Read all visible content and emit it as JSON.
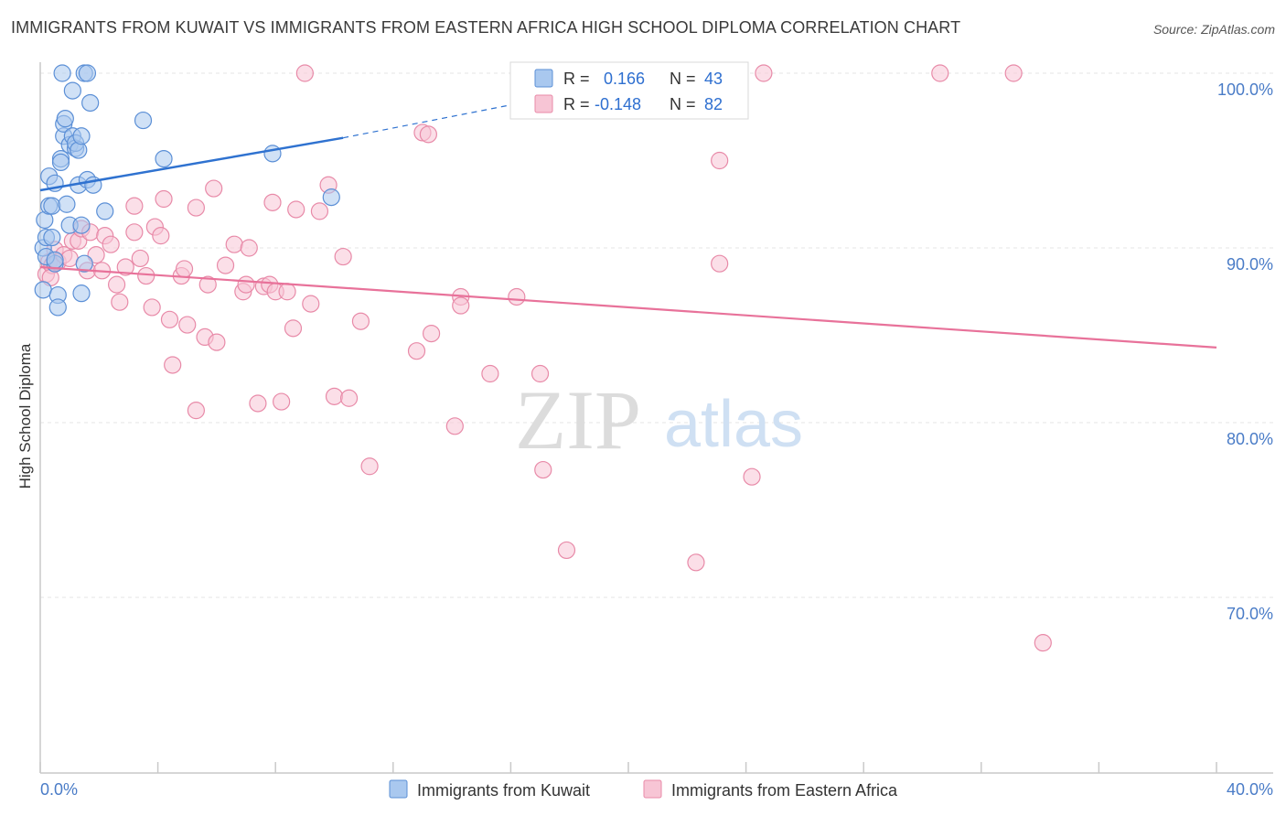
{
  "title": "IMMIGRANTS FROM KUWAIT VS IMMIGRANTS FROM EASTERN AFRICA HIGH SCHOOL DIPLOMA CORRELATION CHART",
  "source": "Source: ZipAtlas.com",
  "watermark": {
    "zip": "ZIP",
    "atlas": "atlas"
  },
  "colors": {
    "kuwait_fill": "#a9c8ef",
    "kuwait_stroke": "#5b8fd6",
    "kuwait_line": "#2f72d0",
    "eafrica_fill": "#f7c5d5",
    "eafrica_stroke": "#e88aa8",
    "eafrica_line": "#e8729a",
    "tick_label": "#4a7cc7",
    "grid": "#e6e6e6"
  },
  "legend": {
    "kuwait": {
      "r_label": "R =",
      "r_value": "0.166",
      "n_label": "N =",
      "n_value": "43"
    },
    "eafrica": {
      "r_label": "R =",
      "r_value": "-0.148",
      "n_label": "N =",
      "n_value": "82"
    }
  },
  "bottom_legend": {
    "kuwait": "Immigrants from Kuwait",
    "eafrica": "Immigrants from Eastern Africa"
  },
  "chart_data": {
    "type": "scatter",
    "title": "IMMIGRANTS FROM KUWAIT VS IMMIGRANTS FROM EASTERN AFRICA HIGH SCHOOL DIPLOMA CORRELATION CHART",
    "xlabel": "",
    "ylabel": "High School Diploma",
    "xlim": [
      0,
      40
    ],
    "ylim": [
      60.5,
      101
    ],
    "x_tick_labels": [
      "0.0%",
      "40.0%"
    ],
    "y_ticks": [
      70,
      80,
      90,
      100
    ],
    "y_tick_labels": [
      "70.0%",
      "80.0%",
      "90.0%",
      "100.0%"
    ],
    "series": [
      {
        "name": "Immigrants from Kuwait",
        "R": 0.166,
        "N": 43,
        "trend": {
          "x": [
            0,
            10.3
          ],
          "y": [
            93.3,
            96.3
          ],
          "dashed_to": [
            21.5,
            100.0
          ]
        },
        "points": [
          [
            0.1,
            87.6
          ],
          [
            0.1,
            90.0
          ],
          [
            0.15,
            91.6
          ],
          [
            0.2,
            90.6
          ],
          [
            0.3,
            92.4
          ],
          [
            0.3,
            94.1
          ],
          [
            0.4,
            90.6
          ],
          [
            0.4,
            92.4
          ],
          [
            0.5,
            93.7
          ],
          [
            0.5,
            89.1
          ],
          [
            0.6,
            87.3
          ],
          [
            0.6,
            86.6
          ],
          [
            0.7,
            95.1
          ],
          [
            0.7,
            94.9
          ],
          [
            0.75,
            100.0
          ],
          [
            0.8,
            96.4
          ],
          [
            0.8,
            97.1
          ],
          [
            0.85,
            97.4
          ],
          [
            0.9,
            92.5
          ],
          [
            1.0,
            91.3
          ],
          [
            1.0,
            95.9
          ],
          [
            1.1,
            96.4
          ],
          [
            1.1,
            99.0
          ],
          [
            1.2,
            95.7
          ],
          [
            1.2,
            96.0
          ],
          [
            1.3,
            93.6
          ],
          [
            1.3,
            95.6
          ],
          [
            1.4,
            96.4
          ],
          [
            1.4,
            87.4
          ],
          [
            1.4,
            91.3
          ],
          [
            1.5,
            89.1
          ],
          [
            1.5,
            100.0
          ],
          [
            1.6,
            93.9
          ],
          [
            1.6,
            100.0
          ],
          [
            1.7,
            98.3
          ],
          [
            1.8,
            93.6
          ],
          [
            2.2,
            92.1
          ],
          [
            3.5,
            97.3
          ],
          [
            4.2,
            95.1
          ],
          [
            7.9,
            95.4
          ],
          [
            9.9,
            92.9
          ],
          [
            0.2,
            89.5
          ],
          [
            0.5,
            89.3
          ]
        ]
      },
      {
        "name": "Immigrants from Eastern Africa",
        "R": -0.148,
        "N": 82,
        "trend": {
          "x": [
            0,
            40
          ],
          "y": [
            88.9,
            84.3
          ]
        },
        "points": [
          [
            0.2,
            88.5
          ],
          [
            0.3,
            89.2
          ],
          [
            0.4,
            89.0
          ],
          [
            0.5,
            89.9
          ],
          [
            0.6,
            89.2
          ],
          [
            0.8,
            89.6
          ],
          [
            1.0,
            89.4
          ],
          [
            1.1,
            90.4
          ],
          [
            1.3,
            90.4
          ],
          [
            1.4,
            91.1
          ],
          [
            1.6,
            88.7
          ],
          [
            1.7,
            90.9
          ],
          [
            1.9,
            89.6
          ],
          [
            2.1,
            88.7
          ],
          [
            2.2,
            90.7
          ],
          [
            2.4,
            90.2
          ],
          [
            2.6,
            87.9
          ],
          [
            2.7,
            86.9
          ],
          [
            2.9,
            88.9
          ],
          [
            3.2,
            92.4
          ],
          [
            3.2,
            90.9
          ],
          [
            3.4,
            89.4
          ],
          [
            3.6,
            88.4
          ],
          [
            3.8,
            86.6
          ],
          [
            3.9,
            91.2
          ],
          [
            4.1,
            90.7
          ],
          [
            4.2,
            92.8
          ],
          [
            4.4,
            85.9
          ],
          [
            4.5,
            83.3
          ],
          [
            4.8,
            88.4
          ],
          [
            4.9,
            88.8
          ],
          [
            5.0,
            85.6
          ],
          [
            5.3,
            92.3
          ],
          [
            5.3,
            80.7
          ],
          [
            5.6,
            84.9
          ],
          [
            5.7,
            87.9
          ],
          [
            5.9,
            93.4
          ],
          [
            6.0,
            84.6
          ],
          [
            6.3,
            89.0
          ],
          [
            6.6,
            90.2
          ],
          [
            6.9,
            87.5
          ],
          [
            7.0,
            87.9
          ],
          [
            7.1,
            90.0
          ],
          [
            7.4,
            81.1
          ],
          [
            7.6,
            87.8
          ],
          [
            7.8,
            87.9
          ],
          [
            7.9,
            92.6
          ],
          [
            8.0,
            87.5
          ],
          [
            8.2,
            81.2
          ],
          [
            8.4,
            87.5
          ],
          [
            8.6,
            85.4
          ],
          [
            8.7,
            92.2
          ],
          [
            9.0,
            100.0
          ],
          [
            9.2,
            86.8
          ],
          [
            9.5,
            92.1
          ],
          [
            9.8,
            93.6
          ],
          [
            10.0,
            81.5
          ],
          [
            10.3,
            89.5
          ],
          [
            10.5,
            81.4
          ],
          [
            10.9,
            85.8
          ],
          [
            11.2,
            77.5
          ],
          [
            12.8,
            84.1
          ],
          [
            13.0,
            96.6
          ],
          [
            13.2,
            96.5
          ],
          [
            13.3,
            85.1
          ],
          [
            14.1,
            79.8
          ],
          [
            14.3,
            87.2
          ],
          [
            14.3,
            86.7
          ],
          [
            15.3,
            82.8
          ],
          [
            16.2,
            87.2
          ],
          [
            17.0,
            82.8
          ],
          [
            17.1,
            77.3
          ],
          [
            17.9,
            72.7
          ],
          [
            22.3,
            72.0
          ],
          [
            23.1,
            95.0
          ],
          [
            23.1,
            89.1
          ],
          [
            24.2,
            76.9
          ],
          [
            24.6,
            100.0
          ],
          [
            30.6,
            100.0
          ],
          [
            33.1,
            100.0
          ],
          [
            34.1,
            67.4
          ],
          [
            0.35,
            88.3
          ]
        ]
      }
    ]
  }
}
